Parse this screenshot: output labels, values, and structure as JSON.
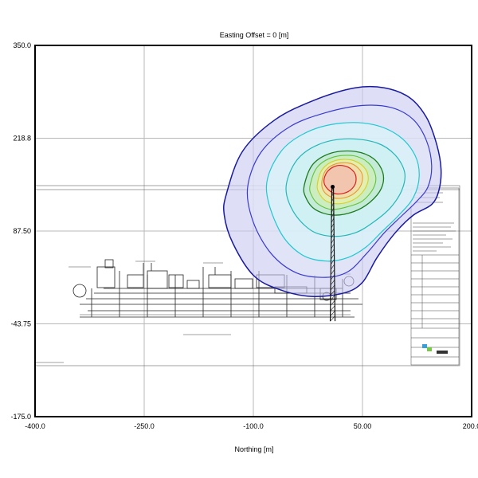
{
  "chart_data": {
    "type": "contour",
    "title": "Easting Offset = 0 [m]",
    "xlabel": "Northing [m]",
    "ylabel": "",
    "xlim": [
      -400.0,
      200.0
    ],
    "ylim": [
      -175.0,
      350.0
    ],
    "xticks": [
      "-400.0",
      "-250.0",
      "-100.0",
      "50.00",
      "200.0"
    ],
    "yticks": [
      "-175.0",
      "-43.75",
      "87.50",
      "218.8",
      "350.0"
    ],
    "grid": true,
    "source": {
      "x": 9,
      "y": 150
    },
    "stack": {
      "x": 9,
      "y_base": -40,
      "y_top": 150
    },
    "contours": [
      {
        "name": "outer",
        "stroke": "#1a1aa0",
        "fill": "#c8c8f0",
        "stroke_width": 1.5,
        "points": [
          [
            -137,
            140
          ],
          [
            -115,
            200
          ],
          [
            -70,
            245
          ],
          [
            -15,
            273
          ],
          [
            40,
            290
          ],
          [
            80,
            290
          ],
          [
            115,
            276
          ],
          [
            138,
            248
          ],
          [
            152,
            210
          ],
          [
            158,
            175
          ],
          [
            155,
            145
          ],
          [
            145,
            125
          ],
          [
            120,
            110
          ],
          [
            95,
            85
          ],
          [
            70,
            50
          ],
          [
            50,
            15
          ],
          [
            25,
            0
          ],
          [
            -20,
            -5
          ],
          [
            -65,
            5
          ],
          [
            -100,
            25
          ],
          [
            -128,
            70
          ],
          [
            -140,
            110
          ]
        ]
      },
      {
        "name": "level-2",
        "stroke": "#3a3ad0",
        "fill": "#e2e8f8",
        "stroke_width": 1.2,
        "points": [
          [
            -108,
            148
          ],
          [
            -90,
            198
          ],
          [
            -50,
            235
          ],
          [
            0,
            255
          ],
          [
            50,
            265
          ],
          [
            90,
            262
          ],
          [
            120,
            245
          ],
          [
            138,
            215
          ],
          [
            145,
            180
          ],
          [
            140,
            150
          ],
          [
            125,
            130
          ],
          [
            105,
            110
          ],
          [
            80,
            85
          ],
          [
            55,
            55
          ],
          [
            30,
            30
          ],
          [
            0,
            22
          ],
          [
            -40,
            28
          ],
          [
            -75,
            55
          ],
          [
            -100,
            100
          ]
        ]
      },
      {
        "name": "level-3",
        "stroke": "#20c8d0",
        "fill": "#d6f6f8",
        "stroke_width": 1.2,
        "points": [
          [
            -82,
            150
          ],
          [
            -62,
            200
          ],
          [
            -25,
            228
          ],
          [
            20,
            240
          ],
          [
            65,
            238
          ],
          [
            100,
            222
          ],
          [
            122,
            195
          ],
          [
            128,
            165
          ],
          [
            120,
            135
          ],
          [
            100,
            110
          ],
          [
            78,
            88
          ],
          [
            55,
            65
          ],
          [
            30,
            50
          ],
          [
            0,
            45
          ],
          [
            -35,
            55
          ],
          [
            -65,
            90
          ]
        ]
      },
      {
        "name": "level-4",
        "stroke": "#26b6b6",
        "fill": "#c8f2f2",
        "stroke_width": 1.2,
        "points": [
          [
            -55,
            150
          ],
          [
            -40,
            188
          ],
          [
            -10,
            210
          ],
          [
            30,
            218
          ],
          [
            70,
            212
          ],
          [
            95,
            195
          ],
          [
            108,
            170
          ],
          [
            104,
            145
          ],
          [
            88,
            120
          ],
          [
            65,
            100
          ],
          [
            40,
            85
          ],
          [
            10,
            80
          ],
          [
            -20,
            88
          ],
          [
            -45,
            115
          ]
        ]
      },
      {
        "name": "level-5",
        "stroke": "#1e7a1e",
        "fill": "#bde8c4",
        "stroke_width": 1.3,
        "points": [
          [
            -30,
            152
          ],
          [
            -18,
            182
          ],
          [
            8,
            198
          ],
          [
            40,
            200
          ],
          [
            65,
            190
          ],
          [
            78,
            170
          ],
          [
            76,
            148
          ],
          [
            60,
            128
          ],
          [
            38,
            115
          ],
          [
            10,
            110
          ],
          [
            -15,
            118
          ],
          [
            -28,
            135
          ]
        ]
      },
      {
        "name": "level-6",
        "stroke": "#62c23a",
        "fill": "#d2efb0",
        "stroke_width": 1.1,
        "points": [
          [
            -22,
            152
          ],
          [
            -12,
            178
          ],
          [
            10,
            192
          ],
          [
            38,
            194
          ],
          [
            58,
            184
          ],
          [
            68,
            166
          ],
          [
            65,
            148
          ],
          [
            50,
            130
          ],
          [
            30,
            122
          ],
          [
            8,
            118
          ],
          [
            -10,
            125
          ],
          [
            -20,
            138
          ]
        ]
      },
      {
        "name": "level-7",
        "stroke": "#d8d020",
        "fill": "#f2f0a6",
        "stroke_width": 1.1,
        "points": [
          [
            -12,
            154
          ],
          [
            -5,
            175
          ],
          [
            12,
            187
          ],
          [
            35,
            188
          ],
          [
            52,
            178
          ],
          [
            58,
            162
          ],
          [
            52,
            145
          ],
          [
            38,
            132
          ],
          [
            18,
            126
          ],
          [
            0,
            130
          ],
          [
            -10,
            142
          ]
        ]
      },
      {
        "name": "level-8",
        "stroke": "#e89a30",
        "fill": "#f8d2a6",
        "stroke_width": 1.1,
        "points": [
          [
            -6,
            156
          ],
          [
            0,
            174
          ],
          [
            15,
            183
          ],
          [
            34,
            183
          ],
          [
            47,
            173
          ],
          [
            50,
            160
          ],
          [
            44,
            146
          ],
          [
            30,
            136
          ],
          [
            12,
            134
          ],
          [
            -2,
            142
          ]
        ]
      },
      {
        "name": "peak",
        "stroke": "#d82020",
        "fill": "#f3b6b0",
        "stroke_width": 1.2,
        "points": [
          [
            -3,
            158
          ],
          [
            2,
            172
          ],
          [
            15,
            180
          ],
          [
            30,
            178
          ],
          [
            40,
            168
          ],
          [
            40,
            154
          ],
          [
            30,
            143
          ],
          [
            14,
            140
          ],
          [
            2,
            147
          ]
        ]
      }
    ]
  }
}
